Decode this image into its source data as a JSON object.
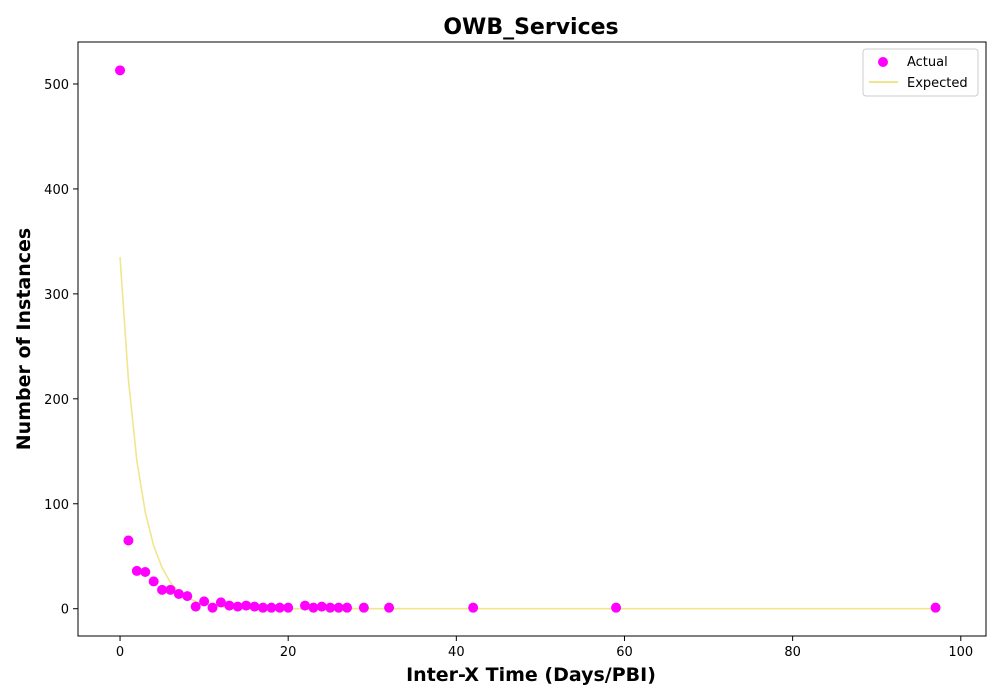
{
  "chart_data": {
    "type": "scatter",
    "title": "OWB_Services",
    "xlabel": "Inter-X Time (Days/PBI)",
    "ylabel": "Number of Instances",
    "xlim": [
      -5,
      103
    ],
    "ylim": [
      -26,
      540
    ],
    "xticks": [
      0,
      20,
      40,
      60,
      80,
      100
    ],
    "yticks": [
      0,
      100,
      200,
      300,
      400,
      500
    ],
    "grid": false,
    "legend_position": "top-right",
    "series": [
      {
        "name": "Actual",
        "kind": "scatter",
        "color": "#ff00ff",
        "points": [
          [
            0,
            513
          ],
          [
            1,
            65
          ],
          [
            2,
            36
          ],
          [
            3,
            35
          ],
          [
            4,
            26
          ],
          [
            5,
            18
          ],
          [
            6,
            18
          ],
          [
            7,
            14
          ],
          [
            8,
            12
          ],
          [
            9,
            2
          ],
          [
            10,
            7
          ],
          [
            11,
            1
          ],
          [
            12,
            6
          ],
          [
            13,
            3
          ],
          [
            14,
            2
          ],
          [
            15,
            3
          ],
          [
            16,
            2
          ],
          [
            17,
            1
          ],
          [
            18,
            1
          ],
          [
            19,
            1
          ],
          [
            20,
            1
          ],
          [
            22,
            3
          ],
          [
            23,
            1
          ],
          [
            24,
            2
          ],
          [
            25,
            1
          ],
          [
            26,
            1
          ],
          [
            27,
            1
          ],
          [
            29,
            1
          ],
          [
            32,
            1
          ],
          [
            42,
            1
          ],
          [
            59,
            1
          ],
          [
            97,
            1
          ]
        ]
      },
      {
        "name": "Expected",
        "kind": "line",
        "color": "#f0e68c",
        "points": [
          [
            0,
            335
          ],
          [
            1,
            218
          ],
          [
            2,
            141
          ],
          [
            3,
            92
          ],
          [
            4,
            60
          ],
          [
            5,
            39
          ],
          [
            6,
            25
          ],
          [
            7,
            16
          ],
          [
            8,
            10.6
          ],
          [
            9,
            6.9
          ],
          [
            10,
            4.5
          ],
          [
            11,
            2.9
          ],
          [
            12,
            1.9
          ],
          [
            13,
            1.2
          ],
          [
            14,
            0.8
          ],
          [
            15,
            0.5
          ],
          [
            16,
            0.3
          ],
          [
            17,
            0.2
          ],
          [
            18,
            0.14
          ],
          [
            19,
            0.09
          ],
          [
            20,
            0.06
          ],
          [
            22,
            0.03
          ],
          [
            23,
            0.02
          ],
          [
            24,
            0.01
          ],
          [
            25,
            0.01
          ],
          [
            26,
            0
          ],
          [
            27,
            0
          ],
          [
            29,
            0
          ],
          [
            32,
            0
          ],
          [
            42,
            0
          ],
          [
            59,
            0
          ],
          [
            97,
            0
          ]
        ]
      }
    ]
  }
}
